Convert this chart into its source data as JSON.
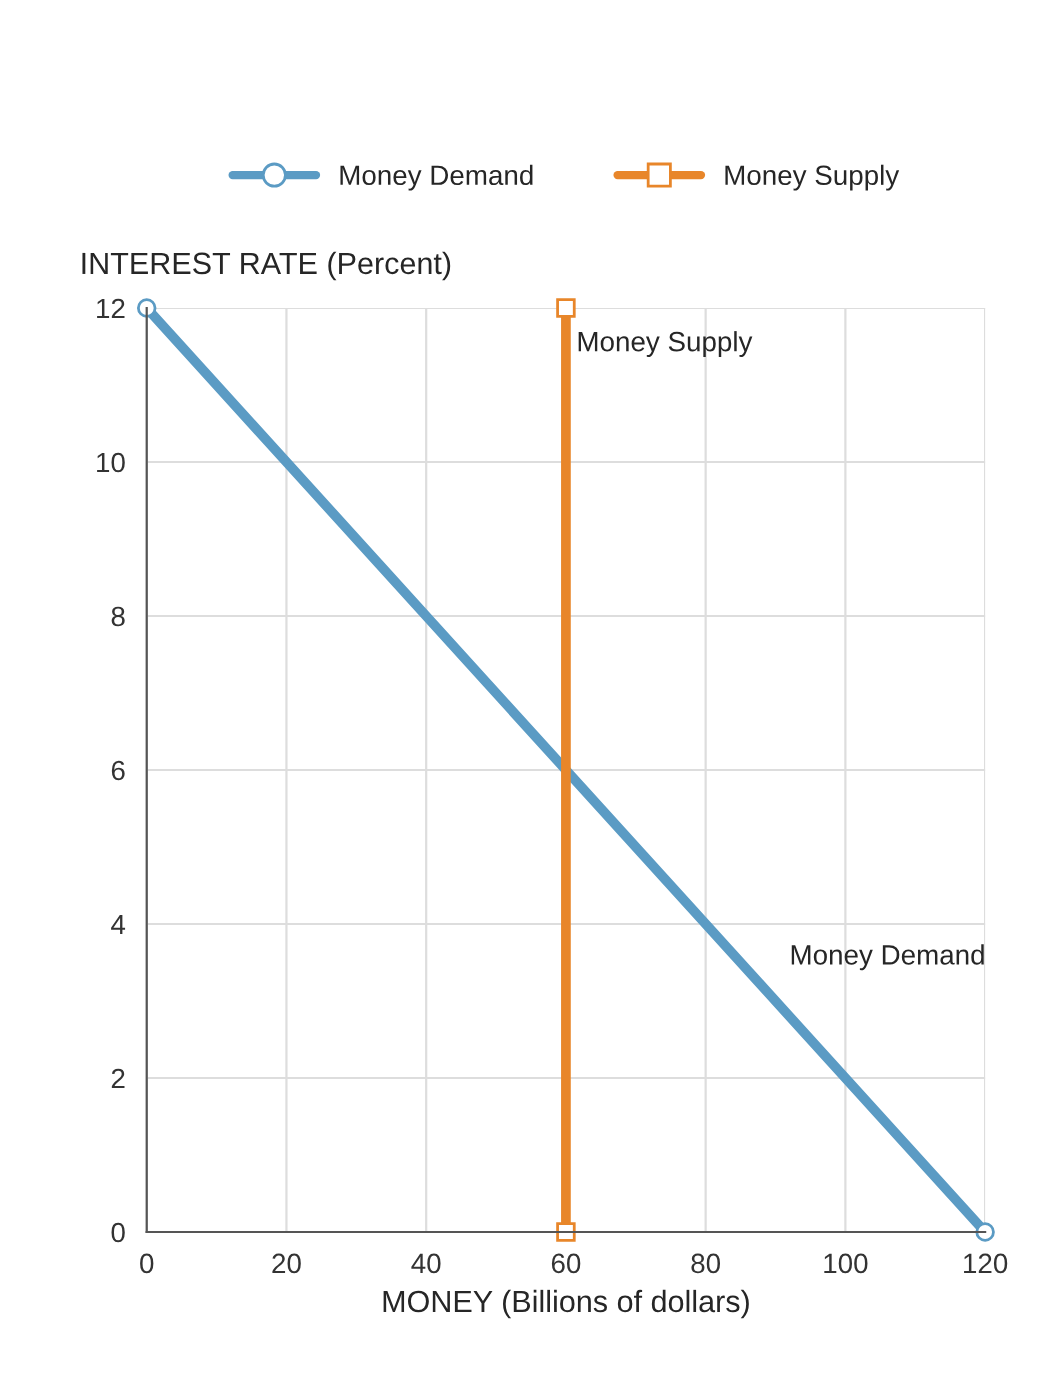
{
  "chart_data": {
    "type": "line",
    "xlabel": "MONEY (Billions of dollars)",
    "ylabel": "INTEREST RATE (Percent)",
    "xlim": [
      0,
      120
    ],
    "xticks": [
      0,
      20,
      40,
      60,
      80,
      100,
      120
    ],
    "ylim": [
      0,
      12
    ],
    "yticks": [
      0,
      2,
      4,
      6,
      8,
      10,
      12
    ],
    "grid": true,
    "legend": "top",
    "series": [
      {
        "name": "Money Demand",
        "color": "#5b9bc4",
        "x": [
          0,
          120
        ],
        "values": [
          12,
          0
        ],
        "marker": "circle"
      },
      {
        "name": "Money Supply",
        "color": "#e8862a",
        "x": [
          60,
          60
        ],
        "values": [
          0,
          12
        ],
        "marker": "square"
      }
    ]
  }
}
